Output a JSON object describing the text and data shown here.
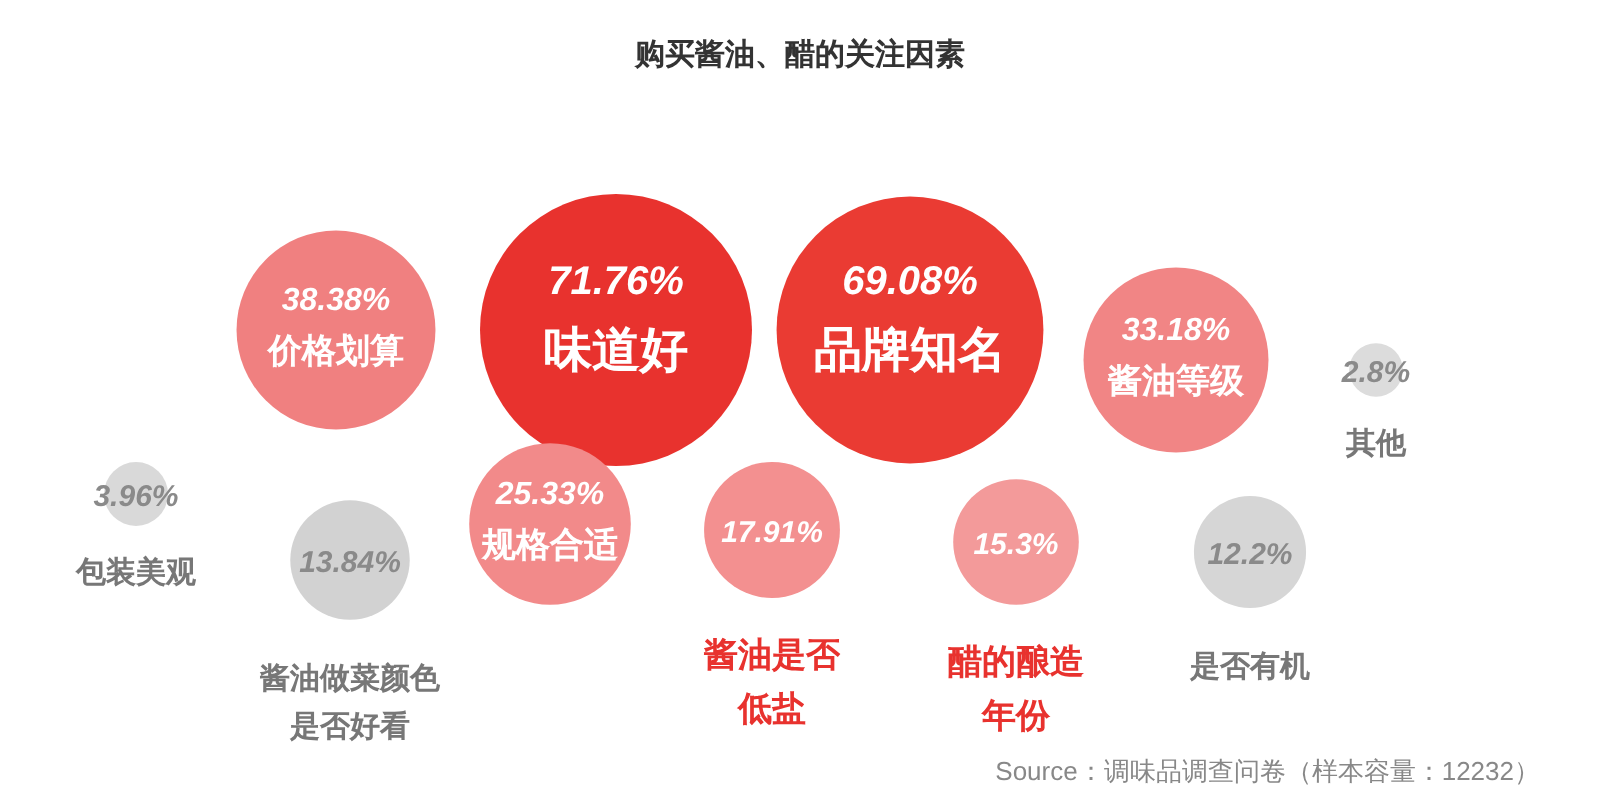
{
  "chart_data": {
    "type": "other",
    "title": "购买酱油、醋的关注因素",
    "categories": [
      "味道好",
      "品牌知名",
      "价格划算",
      "酱油等级",
      "规格合适",
      "酱油是否低盐",
      "醋的酿造年份",
      "酱油做菜颜色是否好看",
      "是否有机",
      "包装美观",
      "其他"
    ],
    "values": [
      71.76,
      69.08,
      38.38,
      33.18,
      25.33,
      17.91,
      15.3,
      13.84,
      12.2,
      3.96,
      2.8
    ],
    "value_labels": [
      "71.76%",
      "69.08%",
      "38.38%",
      "33.18%",
      "25.33%",
      "17.91%",
      "15.3%",
      "13.84%",
      "12.2%",
      "3.96%",
      "2.8%"
    ],
    "colors": [
      "#e8322e",
      "#ea3b33",
      "#f08080",
      "#f18585",
      "#f28a8a",
      "#f39090",
      "#f39a9a",
      "#d2d2d2",
      "#d6d6d6",
      "#d9d9d9",
      "#dcdcdc"
    ],
    "annotations": [
      "Source：调味品调查问卷（样本容量：12232）"
    ]
  }
}
